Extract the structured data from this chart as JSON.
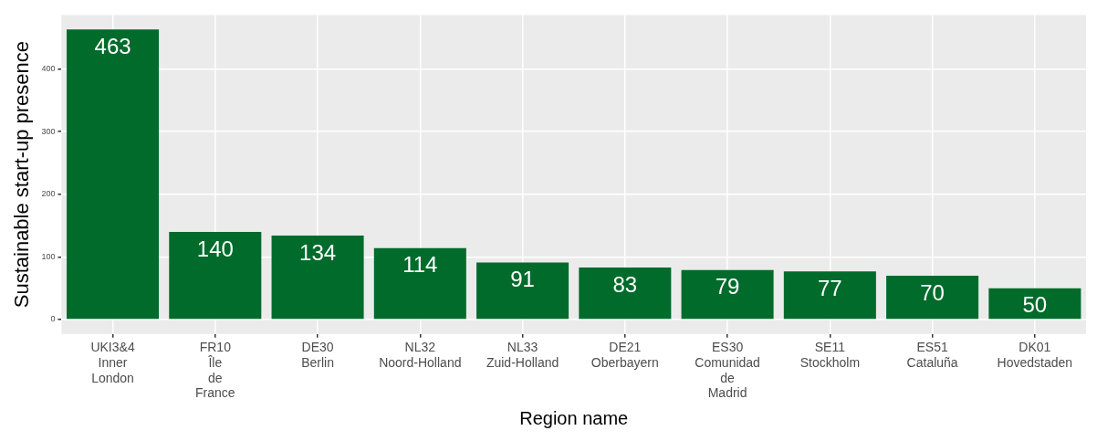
{
  "chart_data": {
    "type": "bar",
    "xlabel": "Region name",
    "ylabel": "Sustainable start-up presence",
    "categories": [
      "UKI3&4\nInner\nLondon",
      "FR10\nÎle\nde\nFrance",
      "DE30\nBerlin",
      "NL32\nNoord-Holland",
      "NL33\nZuid-Holland",
      "DE21\nOberbayern",
      "ES30\nComunidad\nde\nMadrid",
      "SE11\nStockholm",
      "ES51\nCataluña",
      "DK01\nHovedstaden"
    ],
    "values": [
      463,
      140,
      134,
      114,
      91,
      83,
      79,
      77,
      70,
      50
    ],
    "color": "#006b2b",
    "ylim": [
      -23,
      486
    ],
    "yticks": [
      0,
      100,
      200,
      300,
      400
    ],
    "grid": true,
    "data_labels": true
  }
}
